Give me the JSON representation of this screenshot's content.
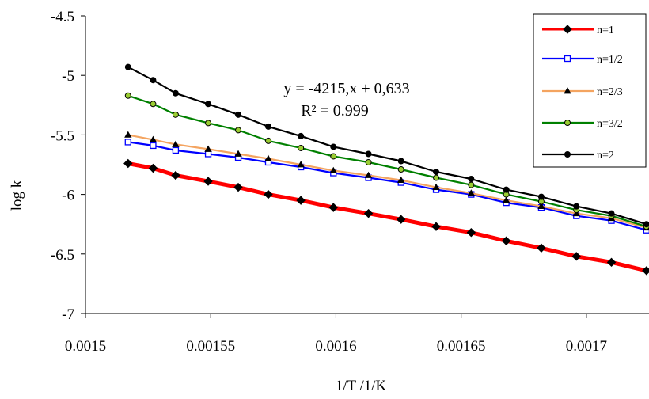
{
  "chart_data": {
    "type": "line",
    "title": "",
    "xlabel": "1/T /1/K",
    "ylabel": "log k",
    "xlim": [
      0.0015,
      0.001725
    ],
    "ylim": [
      -7,
      -4.5
    ],
    "grid": false,
    "legend_position": "top-right",
    "x_ticks": [
      "0.0015",
      "0.00155",
      "0.0016",
      "0.00165",
      "0.0017"
    ],
    "y_ticks": [
      "-4.5",
      "-5",
      "-5.5",
      "-6",
      "-6.5",
      "-7"
    ],
    "x": [
      0.001517,
      0.001527,
      0.001536,
      0.001549,
      0.001561,
      0.001573,
      0.001586,
      0.001599,
      0.001613,
      0.001626,
      0.00164,
      0.001654,
      0.001668,
      0.001682,
      0.001696,
      0.00171,
      0.001724
    ],
    "series": [
      {
        "name": "n=1",
        "color": "#ff0000",
        "marker": "diamond",
        "values": [
          -5.74,
          -5.78,
          -5.84,
          -5.89,
          -5.94,
          -6.0,
          -6.05,
          -6.11,
          -6.16,
          -6.21,
          -6.27,
          -6.32,
          -6.39,
          -6.45,
          -6.52,
          -6.57,
          -6.64
        ]
      },
      {
        "name": "n=1/2",
        "color": "#0000ff",
        "marker": "square",
        "values": [
          -5.56,
          -5.59,
          -5.63,
          -5.66,
          -5.69,
          -5.73,
          -5.77,
          -5.82,
          -5.86,
          -5.9,
          -5.96,
          -6.0,
          -6.07,
          -6.11,
          -6.18,
          -6.22,
          -6.3
        ]
      },
      {
        "name": "n=2/3",
        "color": "#f4a460",
        "marker": "triangle",
        "values": [
          -5.5,
          -5.54,
          -5.58,
          -5.62,
          -5.66,
          -5.7,
          -5.75,
          -5.8,
          -5.84,
          -5.88,
          -5.94,
          -5.99,
          -6.05,
          -6.1,
          -6.16,
          -6.2,
          -6.28
        ]
      },
      {
        "name": "n=3/2",
        "color": "#008000",
        "marker": "circle",
        "values": [
          -5.17,
          -5.24,
          -5.33,
          -5.4,
          -5.46,
          -5.55,
          -5.61,
          -5.68,
          -5.73,
          -5.79,
          -5.86,
          -5.92,
          -6.0,
          -6.06,
          -6.13,
          -6.18,
          -6.27
        ]
      },
      {
        "name": "n=2",
        "color": "#000000",
        "marker": "circle",
        "values": [
          -4.93,
          -5.04,
          -5.15,
          -5.24,
          -5.33,
          -5.43,
          -5.51,
          -5.6,
          -5.66,
          -5.72,
          -5.81,
          -5.87,
          -5.96,
          -6.02,
          -6.1,
          -6.16,
          -6.25
        ]
      }
    ],
    "annotations": [
      "y = -4215,x + 0,633",
      "R² = 0.999"
    ]
  }
}
